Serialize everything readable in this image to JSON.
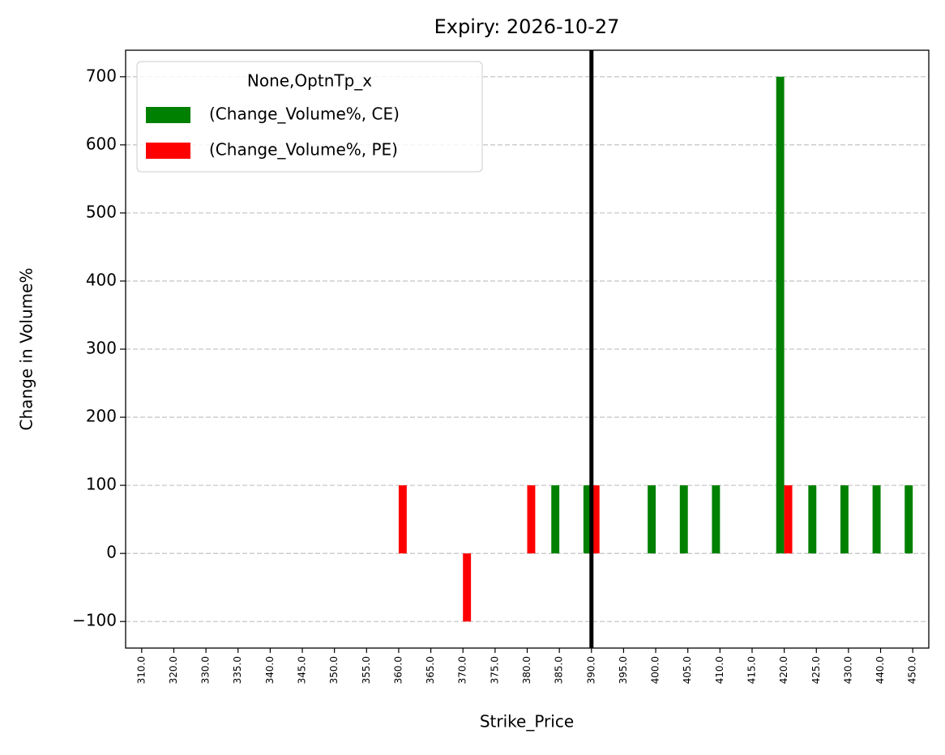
{
  "chart_data": {
    "type": "bar",
    "title": "Expiry: 2026-10-27",
    "x_label": "Strike_Price",
    "y_label": "Change in Volume%",
    "categories": [
      "310.0",
      "320.0",
      "330.0",
      "335.0",
      "340.0",
      "345.0",
      "350.0",
      "355.0",
      "360.0",
      "365.0",
      "370.0",
      "375.0",
      "380.0",
      "385.0",
      "390.0",
      "395.0",
      "400.0",
      "405.0",
      "410.0",
      "415.0",
      "420.0",
      "425.0",
      "430.0",
      "440.0",
      "450.0"
    ],
    "series": [
      {
        "name": "(Change_Volume%, CE)",
        "color": "#008000",
        "values": [
          null,
          null,
          null,
          null,
          null,
          null,
          null,
          null,
          null,
          null,
          null,
          null,
          null,
          100,
          100,
          null,
          100,
          100,
          100,
          null,
          700,
          100,
          100,
          100,
          100
        ]
      },
      {
        "name": "(Change_Volume%, PE)",
        "color": "#ff0000",
        "values": [
          null,
          null,
          null,
          null,
          null,
          null,
          null,
          null,
          100,
          null,
          -100,
          null,
          100,
          null,
          100,
          null,
          null,
          null,
          null,
          null,
          100,
          null,
          null,
          null,
          null
        ]
      }
    ],
    "legend_title": "None,OptnTp_x",
    "legend_position": "upper-left",
    "ylim": [
      -139,
      739
    ],
    "yticks": [
      {
        "value": -100,
        "label": "−100"
      },
      0,
      100,
      200,
      300,
      400,
      500,
      600,
      700
    ],
    "grid": true,
    "reference_line": {
      "category": "390.0",
      "color": "#000000"
    }
  }
}
